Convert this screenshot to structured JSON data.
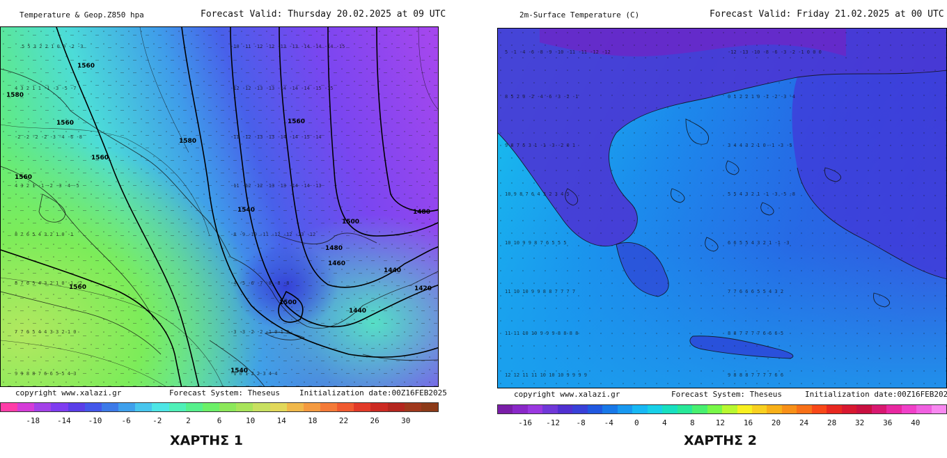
{
  "map1": {
    "title": "Temperature & Geop.Z850 hpa",
    "valid": "Forecast Valid:  Thursday 20.02.2025 at 09 UTC",
    "copyright": "copyright www.xalazi.gr",
    "system": "Forecast System: Theseus",
    "init": "Initialization date:00Z16FEB2025",
    "colorbar_ticks": [
      "-18",
      "-14",
      "-10",
      "-6",
      "-2",
      "2",
      "6",
      "10",
      "14",
      "18",
      "22",
      "26",
      "30"
    ],
    "colorbar_colors": [
      "#ff3da8",
      "#d53cd8",
      "#a342e8",
      "#7f3df0",
      "#5a3ee8",
      "#4457ea",
      "#3d7ae8",
      "#3fa0ec",
      "#48c6ee",
      "#4ee6e6",
      "#4ff0b8",
      "#56f08c",
      "#6cf068",
      "#8ce85a",
      "#a8e45a",
      "#c8e060",
      "#e2d85a",
      "#f0b84a",
      "#f49a40",
      "#f47a38",
      "#f05a30",
      "#e23a28",
      "#cc2a22",
      "#b4261e",
      "#a0381c",
      "#8c3a18"
    ],
    "contours": [
      "1560",
      "1560",
      "1560",
      "1580",
      "1560",
      "1540",
      "1500",
      "1500",
      "1480",
      "1480",
      "1460",
      "1440",
      "1440",
      "1420",
      "1580",
      "1560",
      "1540",
      "1560"
    ],
    "caption": "ΧΑΡΤΗΣ 1"
  },
  "map2": {
    "title": "2m-Surface Temperature (C)",
    "valid": "Forecast Valid:  Friday 21.02.2025 at 00 UTC",
    "copyright": "copyright www.xalazi.gr",
    "system": "Forecast System: Theseus",
    "init": "Initialization  date:00Z16FEB2025",
    "colorbar_ticks": [
      "-16",
      "-12",
      "-8",
      "-4",
      "0",
      "4",
      "8",
      "12",
      "16",
      "20",
      "24",
      "28",
      "32",
      "36",
      "40"
    ],
    "colorbar_colors": [
      "#7a1ea8",
      "#8a28c8",
      "#9a38e0",
      "#7038d8",
      "#5030d0",
      "#3840d8",
      "#2058e0",
      "#1878e8",
      "#1898f0",
      "#18b8f4",
      "#18d0e8",
      "#18e0c0",
      "#28e898",
      "#48f070",
      "#78f848",
      "#b8f830",
      "#f8f020",
      "#f8d020",
      "#f8b018",
      "#f89018",
      "#f87018",
      "#f84818",
      "#e82820",
      "#d81830",
      "#c81040",
      "#d81870",
      "#e828a0",
      "#f040c8",
      "#f060e0",
      "#f888f0"
    ],
    "caption": "ΧΑΡΤΗΣ 2"
  }
}
